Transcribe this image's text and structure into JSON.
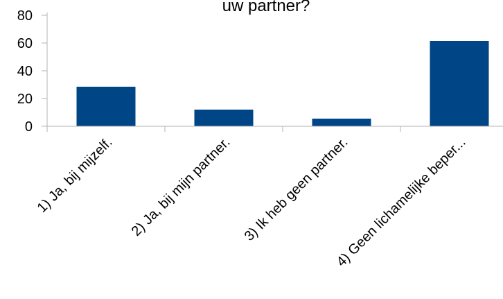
{
  "chart_data": {
    "type": "bar",
    "title": "uw partner?",
    "categories": [
      "1) Ja, bij mijzelf.",
      "2) Ja, bij mijn partner.",
      "3) Ik heb geen partner.",
      "4) Geen lichamelijke beper..."
    ],
    "values": [
      28.5,
      12,
      5.5,
      61.5
    ],
    "ylim": [
      0,
      80
    ],
    "yticks": [
      "0",
      "20",
      "40",
      "60",
      "80"
    ],
    "xlabel": "",
    "ylabel": "",
    "grid": false,
    "legend": "none",
    "bar_color": "#004586",
    "axis_color": "#b3b3b3"
  }
}
